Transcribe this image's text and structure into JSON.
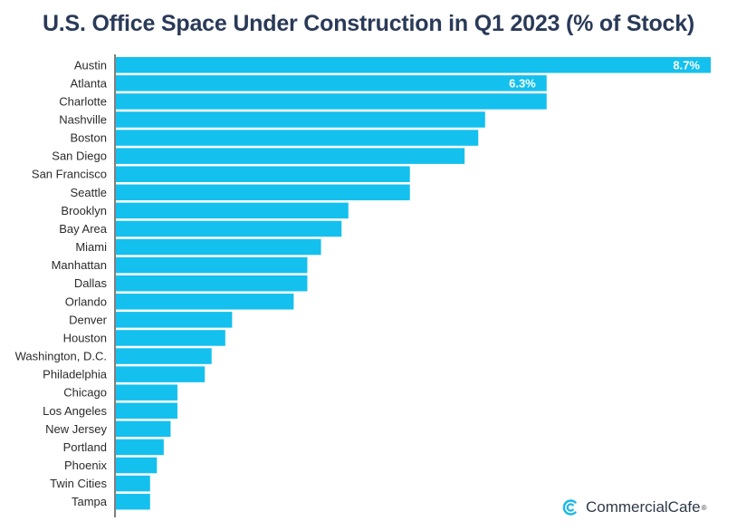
{
  "chart_data": {
    "type": "bar",
    "orientation": "horizontal",
    "title": "U.S. Office Space Under Construction in Q1 2023 (% of Stock)",
    "xlabel": "",
    "ylabel": "",
    "xlim": [
      0,
      8.7
    ],
    "grid": false,
    "legend": "none",
    "bar_color": "#14c0ee",
    "categories": [
      "Austin",
      "Atlanta",
      "Charlotte",
      "Nashville",
      "Boston",
      "San Diego",
      "San Francisco",
      "Seattle",
      "Brooklyn",
      "Bay Area",
      "Miami",
      "Manhattan",
      "Dallas",
      "Orlando",
      "Denver",
      "Houston",
      "Washington, D.C.",
      "Philadelphia",
      "Chicago",
      "Los Angeles",
      "New Jersey",
      "Portland",
      "Phoenix",
      "Twin Cities",
      "Tampa"
    ],
    "values": [
      8.7,
      6.3,
      6.3,
      5.4,
      5.3,
      5.1,
      4.3,
      4.3,
      3.4,
      3.3,
      3.0,
      2.8,
      2.8,
      2.6,
      1.7,
      1.6,
      1.4,
      1.3,
      0.9,
      0.9,
      0.8,
      0.7,
      0.6,
      0.5,
      0.5
    ],
    "data_labels": [
      "8.7%",
      "6.3%",
      "",
      "",
      "",
      "",
      "",
      "",
      "",
      "",
      "",
      "",
      "",
      "",
      "",
      "",
      "",
      "",
      "",
      "",
      "",
      "",
      "",
      "",
      ""
    ]
  },
  "brand": {
    "name": "CommercialCafe",
    "registered": "®",
    "icon": "commercialcafe-logo-icon",
    "color": "#1ab8e6"
  }
}
